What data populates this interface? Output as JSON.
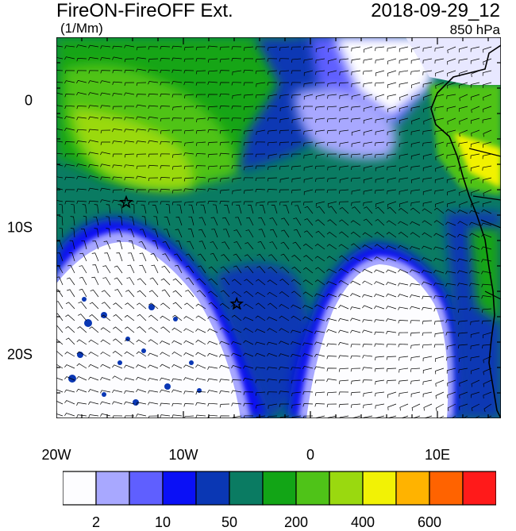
{
  "header": {
    "title": "FireON-FireOFF Ext.",
    "units": "(1/Mm)",
    "datetime": "2018-09-29_12",
    "level": "850 hPa"
  },
  "map": {
    "lon_range": [
      -20,
      15
    ],
    "lat_range": [
      -25,
      5
    ],
    "x_ticks": [
      {
        "value": -20,
        "label": "20W"
      },
      {
        "value": -10,
        "label": "10W"
      },
      {
        "value": 0,
        "label": "0"
      },
      {
        "value": 10,
        "label": "10E"
      }
    ],
    "y_ticks": [
      {
        "value": 0,
        "label": "0"
      },
      {
        "value": -10,
        "label": "10S"
      },
      {
        "value": -20,
        "label": "20S"
      }
    ],
    "markers": [
      {
        "type": "star",
        "lon": -14.5,
        "lat": -8
      },
      {
        "type": "star",
        "lon": -5.8,
        "lat": -16
      }
    ],
    "wind_barbs": true,
    "coastline": true
  },
  "colorbar": {
    "colors": [
      "#fdfdff",
      "#a8a8ff",
      "#5f5fff",
      "#0a10f6",
      "#0a37b4",
      "#0a7b62",
      "#12a516",
      "#4fc318",
      "#9ad90f",
      "#f2f205",
      "#ffb300",
      "#ff6300",
      "#ff1a1a"
    ],
    "labels": [
      {
        "text": "2",
        "boundary": 1
      },
      {
        "text": "10",
        "boundary": 3
      },
      {
        "text": "50",
        "boundary": 5
      },
      {
        "text": "200",
        "boundary": 7
      },
      {
        "text": "400",
        "boundary": 9
      },
      {
        "text": "600",
        "boundary": 11
      }
    ]
  }
}
